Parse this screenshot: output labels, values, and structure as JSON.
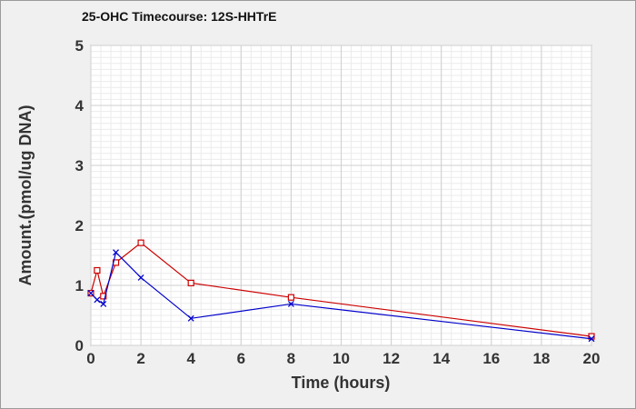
{
  "chart_data": {
    "type": "line",
    "title": "25-OHC Timecourse: 12S-HHTrE",
    "xlabel": "Time (hours)",
    "ylabel": "Amount.(pmol/ug DNA)",
    "xlim": [
      0,
      20
    ],
    "ylim": [
      0,
      5
    ],
    "xticks": [
      0,
      2,
      4,
      6,
      8,
      10,
      12,
      14,
      16,
      18,
      20
    ],
    "yticks": [
      0,
      1,
      2,
      3,
      4,
      5
    ],
    "grid": true,
    "series": [
      {
        "color": "#cc0000",
        "marker": "square",
        "x": [
          0,
          0.25,
          0.5,
          1,
          2,
          4,
          8,
          20
        ],
        "y": [
          0.87,
          1.25,
          0.82,
          1.38,
          1.71,
          1.04,
          0.8,
          0.15
        ]
      },
      {
        "color": "#0000cc",
        "marker": "x",
        "x": [
          0,
          0.25,
          0.5,
          1,
          2,
          4,
          8,
          20
        ],
        "y": [
          0.87,
          0.76,
          0.69,
          1.55,
          1.13,
          0.45,
          0.69,
          0.11
        ]
      }
    ]
  }
}
